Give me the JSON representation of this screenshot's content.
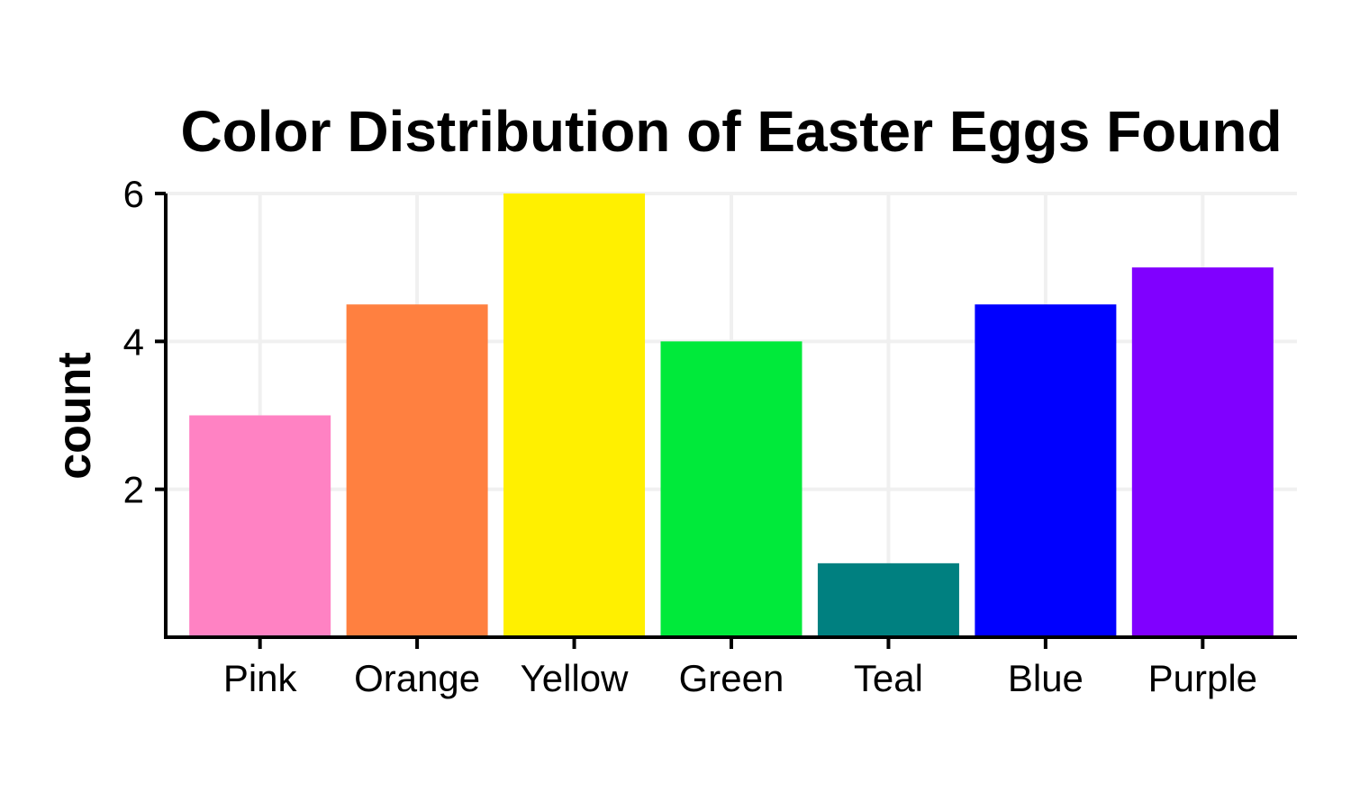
{
  "chart_data": {
    "type": "bar",
    "title": "Color Distribution of Easter Eggs Found",
    "xlabel": "",
    "ylabel": "count",
    "categories": [
      "Pink",
      "Orange",
      "Yellow",
      "Green",
      "Teal",
      "Blue",
      "Purple"
    ],
    "values": [
      3,
      4.5,
      6,
      4,
      1,
      4.5,
      5
    ],
    "colors": [
      "#ff82c3",
      "#ff8040",
      "#fff000",
      "#00ea3a",
      "#008080",
      "#0000ff",
      "#8000ff"
    ],
    "ylim": [
      0,
      6
    ],
    "yticks": [
      2,
      4,
      6
    ],
    "grid": true,
    "legend": "none"
  }
}
